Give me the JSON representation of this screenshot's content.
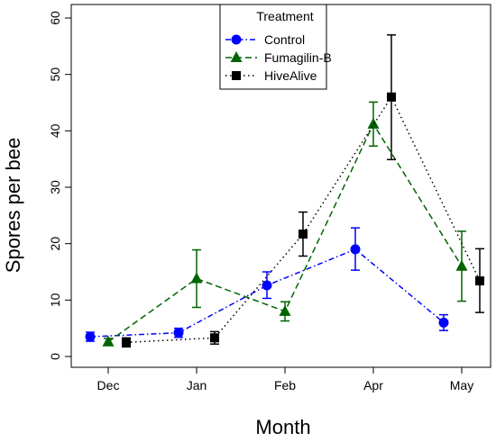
{
  "chart_data": {
    "type": "line",
    "xlabel": "Month",
    "ylabel": "Spores per bee",
    "ylim": [
      0,
      60
    ],
    "yticks": [
      0,
      10,
      20,
      30,
      40,
      50,
      60
    ],
    "categories": [
      "Dec",
      "Jan",
      "Feb",
      "Apr",
      "May"
    ],
    "grid": false,
    "legend": {
      "title": "Treatment",
      "placement": "top-center"
    },
    "series": [
      {
        "name": "Control",
        "color": "#0000ff",
        "marker": "circle",
        "line_style": "dash-dot",
        "values": [
          3.5,
          4.2,
          12.6,
          19.0,
          6.0
        ],
        "err_low": [
          2.7,
          3.4,
          10.3,
          15.3,
          4.6
        ],
        "err_high": [
          4.3,
          5.0,
          15.0,
          22.8,
          7.4
        ]
      },
      {
        "name": "Fumagilin-B",
        "color": "#006400",
        "marker": "triangle",
        "line_style": "dashed",
        "values": [
          2.6,
          13.8,
          8.0,
          41.2,
          16.0
        ],
        "err_low": [
          2.0,
          8.7,
          6.3,
          37.3,
          9.8
        ],
        "err_high": [
          3.2,
          18.9,
          9.7,
          45.1,
          22.2
        ]
      },
      {
        "name": "HiveAlive",
        "color": "#000000",
        "marker": "square",
        "line_style": "dotted",
        "values": [
          2.5,
          3.3,
          21.7,
          46.0,
          13.4
        ],
        "err_low": [
          1.7,
          2.2,
          17.8,
          34.9,
          7.8
        ],
        "err_high": [
          3.3,
          4.4,
          25.6,
          57.0,
          19.1
        ]
      }
    ]
  }
}
